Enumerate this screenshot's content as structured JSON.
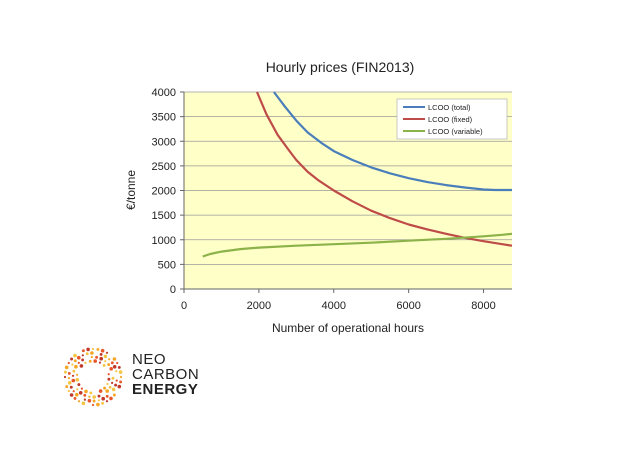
{
  "chart_data": {
    "type": "line",
    "title": "Hourly prices (FIN2013)",
    "xlabel": "Number of operational hours",
    "ylabel": "€/tonne",
    "xlim": [
      0,
      8760
    ],
    "ylim": [
      0,
      4000
    ],
    "x_ticks": [
      0,
      2000,
      4000,
      6000,
      8000
    ],
    "y_ticks": [
      0,
      500,
      1000,
      1500,
      2000,
      2500,
      3000,
      3500,
      4000
    ],
    "x_tick_labels": [
      "0",
      "2000",
      "4000",
      "6000",
      "8000"
    ],
    "y_tick_labels": [
      "0",
      "500",
      "1000",
      "1500",
      "2000",
      "2500",
      "3000",
      "3500",
      "4000"
    ],
    "grid": "horizontal",
    "plot_background": "#ffffc8",
    "legend_position": "top-right",
    "series": [
      {
        "name": "LCOO (total)",
        "color": "#4a7ebb",
        "x": [
          2400,
          2700,
          3000,
          3300,
          3700,
          4000,
          4500,
          5000,
          5500,
          6000,
          6500,
          7000,
          7500,
          8000,
          8300,
          8760
        ],
        "values": [
          4000,
          3700,
          3420,
          3180,
          2950,
          2800,
          2620,
          2470,
          2350,
          2250,
          2170,
          2110,
          2060,
          2020,
          2010,
          2010
        ]
      },
      {
        "name": "LCOO (fixed)",
        "color": "#be4b48",
        "x": [
          1950,
          2200,
          2500,
          2800,
          3000,
          3300,
          3600,
          4000,
          4500,
          5000,
          5500,
          6000,
          6500,
          7000,
          7500,
          8000,
          8500,
          8760
        ],
        "values": [
          4000,
          3550,
          3130,
          2820,
          2620,
          2380,
          2200,
          2000,
          1780,
          1590,
          1440,
          1310,
          1210,
          1120,
          1040,
          970,
          910,
          880
        ]
      },
      {
        "name": "LCOO (variable)",
        "color": "#8cb24a",
        "x": [
          500,
          700,
          1000,
          1500,
          2000,
          3000,
          4000,
          5000,
          6000,
          7000,
          8000,
          8500,
          8760
        ],
        "values": [
          660,
          710,
          760,
          810,
          840,
          880,
          910,
          940,
          980,
          1020,
          1070,
          1100,
          1120
        ]
      }
    ]
  },
  "logo": {
    "line1": "NEO",
    "line2": "CARBON",
    "line3": "ENERGY",
    "colors": [
      "#f5a623",
      "#e8572a",
      "#c0392b",
      "#f4c542"
    ]
  }
}
